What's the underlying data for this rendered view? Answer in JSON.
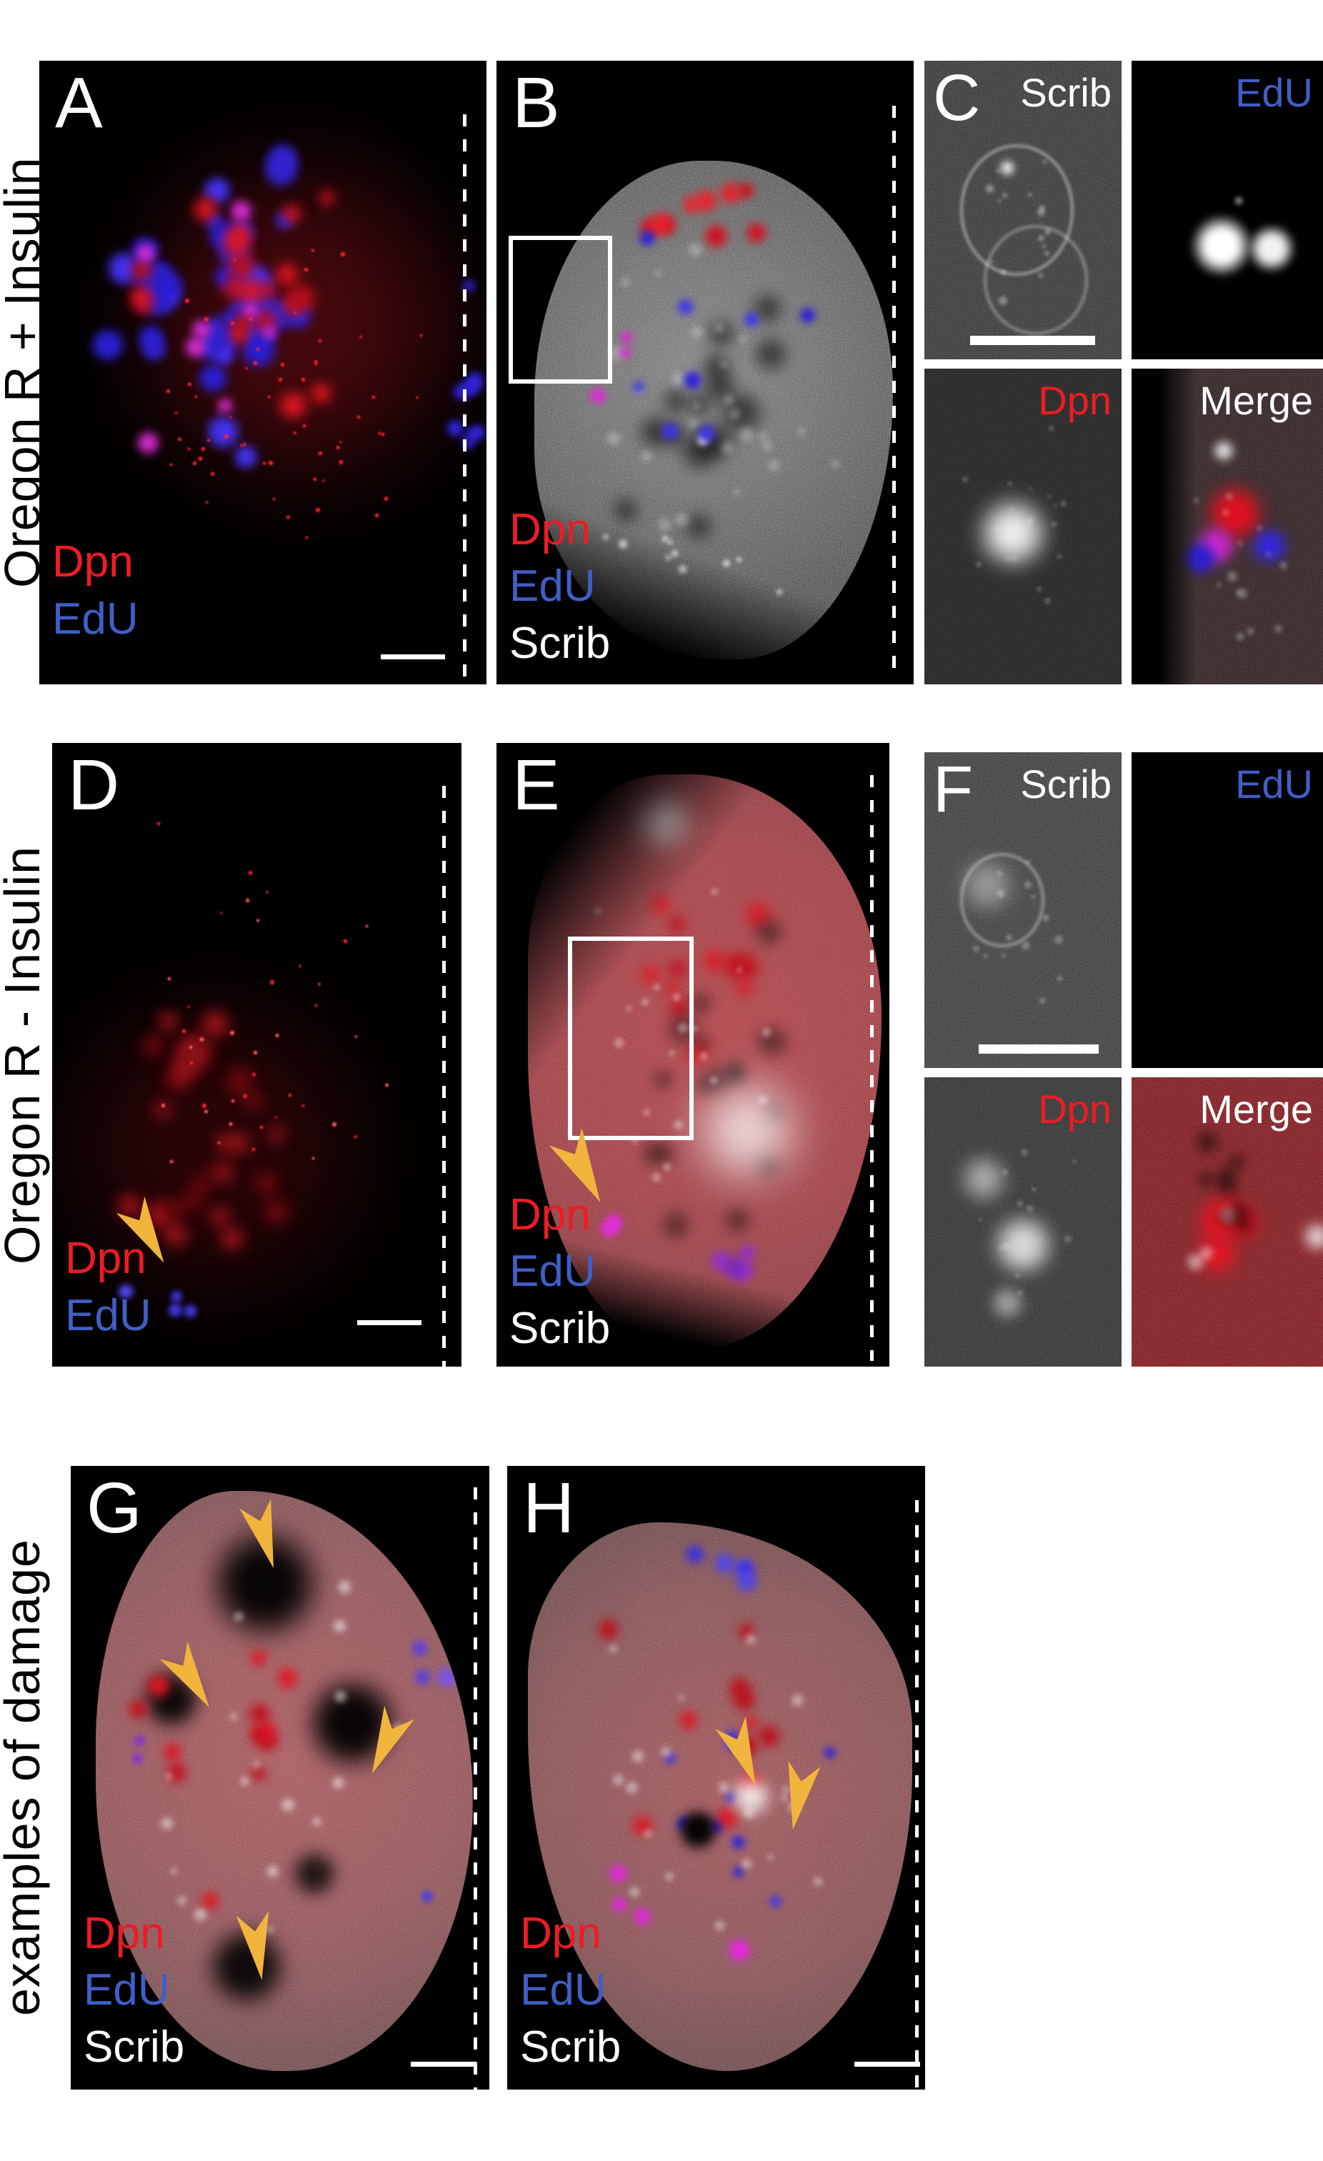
{
  "rows": {
    "r1": {
      "label": "Oregon R + Insulin"
    },
    "r2": {
      "label": "Oregon R - Insulin"
    },
    "r3": {
      "label": "examples of damage"
    }
  },
  "panels": {
    "a": {
      "letter": "A",
      "dpn": "Dpn",
      "edu": "EdU"
    },
    "b": {
      "letter": "B",
      "dpn": "Dpn",
      "edu": "EdU",
      "scrib": "Scrib"
    },
    "c": {
      "letter": "C",
      "scrib": "Scrib",
      "edu": "EdU",
      "dpn": "Dpn",
      "merge": "Merge"
    },
    "d": {
      "letter": "D",
      "dpn": "Dpn",
      "edu": "EdU"
    },
    "e": {
      "letter": "E",
      "dpn": "Dpn",
      "edu": "EdU",
      "scrib": "Scrib"
    },
    "f": {
      "letter": "F",
      "scrib": "Scrib",
      "edu": "EdU",
      "dpn": "Dpn",
      "merge": "Merge"
    },
    "g": {
      "letter": "G",
      "dpn": "Dpn",
      "edu": "EdU",
      "scrib": "Scrib"
    },
    "h": {
      "letter": "H",
      "dpn": "Dpn",
      "edu": "EdU",
      "scrib": "Scrib"
    }
  },
  "colors": {
    "dpn": "#ed1c24",
    "edu": "#3f5fc6",
    "scrib": "#ffffff",
    "merge_label": "#ffffff",
    "arrowhead": "#f1b53e",
    "row_label": "#000000",
    "panel_background": "#000000",
    "page_background": "#ffffff"
  }
}
